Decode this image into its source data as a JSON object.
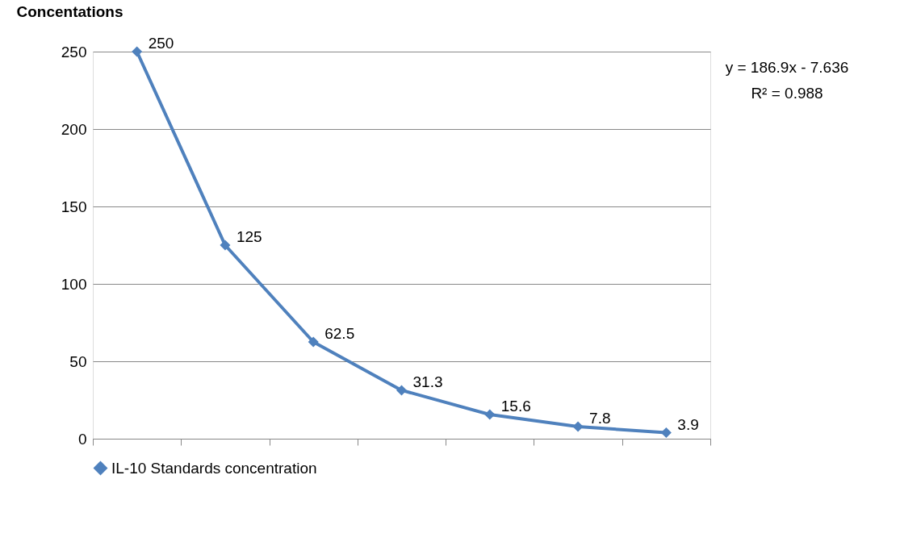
{
  "chart_data": {
    "type": "line",
    "ylabel": "Concentations",
    "categories": [
      null,
      null,
      null,
      null,
      null,
      null,
      null
    ],
    "series": [
      {
        "name": "IL-10 Standards concentration",
        "color": "#4f81bd",
        "values": [
          250,
          125,
          62.5,
          31.3,
          15.6,
          7.8,
          3.9
        ]
      }
    ],
    "ylim": [
      0,
      250
    ],
    "yticks": [
      0,
      50,
      100,
      150,
      200,
      250
    ],
    "grid": "y",
    "legend": "bottom",
    "marker": "diamond",
    "line_style": "solid",
    "data_labels": true,
    "annotations": [
      "y = 186.9x - 7.636",
      "R² = 0.988"
    ]
  }
}
